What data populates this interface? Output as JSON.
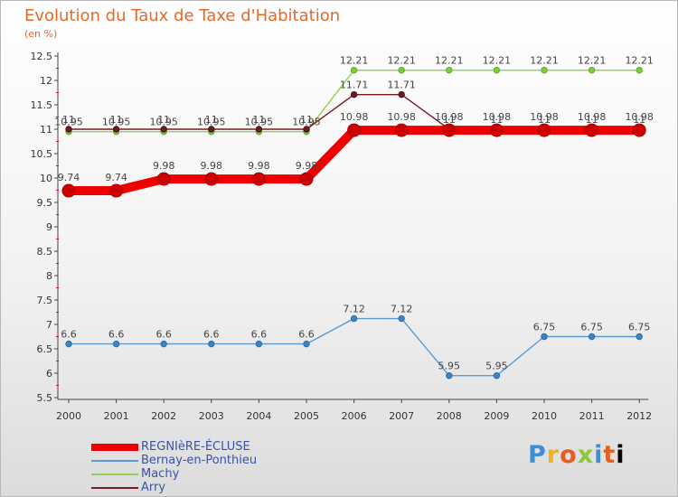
{
  "chart_data": {
    "type": "line",
    "title": "Evolution du Taux de Taxe d'Habitation",
    "subtitle": "(en %)",
    "xlabel": "",
    "ylabel": "",
    "categories": [
      "2000",
      "2001",
      "2002",
      "2003",
      "2004",
      "2005",
      "2006",
      "2007",
      "2008",
      "2009",
      "2010",
      "2011",
      "2012"
    ],
    "ylim": [
      5.5,
      12.5
    ],
    "yticks": [
      "5.5",
      "6",
      "6.5",
      "7",
      "7.5",
      "8",
      "8.5",
      "9",
      "9.5",
      "10",
      "10.5",
      "11",
      "11.5",
      "12",
      "12.5"
    ],
    "grid": false,
    "legend_position": "bottom-left",
    "series": [
      {
        "name": "REGNIèRE-ÉCLUSE",
        "color": "#ee0000",
        "values": [
          9.74,
          9.74,
          9.98,
          9.98,
          9.98,
          9.98,
          10.98,
          10.98,
          10.98,
          10.98,
          10.98,
          10.98,
          10.98
        ],
        "labels": [
          "9.74",
          "9.74",
          "9.98",
          "9.98",
          "9.98",
          "9.98",
          "10.98",
          "10.98",
          "10.98",
          "10.98",
          "10.98",
          "10.98",
          "10.98"
        ]
      },
      {
        "name": "Bernay-en-Ponthieu",
        "color": "#5a9bd4",
        "values": [
          6.6,
          6.6,
          6.6,
          6.6,
          6.6,
          6.6,
          7.12,
          7.12,
          5.95,
          5.95,
          6.75,
          6.75,
          6.75
        ],
        "labels": [
          "6.6",
          "6.6",
          "6.6",
          "6.6",
          "6.6",
          "6.6",
          "7.12",
          "7.12",
          "5.95",
          "5.95",
          "6.75",
          "6.75",
          "6.75"
        ]
      },
      {
        "name": "Machy",
        "color": "#8fd24a",
        "values": [
          10.95,
          10.95,
          10.95,
          10.95,
          10.95,
          10.95,
          12.21,
          12.21,
          12.21,
          12.21,
          12.21,
          12.21,
          12.21
        ],
        "labels": [
          "10.95",
          "10.95",
          "10.95",
          "10.95",
          "10.95",
          "10.95",
          "12.21",
          "12.21",
          "12.21",
          "12.21",
          "12.21",
          "12.21",
          "12.21"
        ]
      },
      {
        "name": "Arry",
        "color": "#7a1a22",
        "values": [
          11,
          11,
          11,
          11,
          11,
          11,
          11.71,
          11.71,
          11,
          11,
          11,
          11,
          11
        ],
        "labels": [
          "11",
          "11",
          "11",
          "11",
          "11",
          "11",
          "11.71",
          "11.71",
          "11",
          "11",
          "11",
          "11",
          "11"
        ]
      }
    ]
  },
  "logo": {
    "letters": [
      "P",
      "r",
      "o",
      "x",
      "i",
      "t",
      "i"
    ]
  }
}
